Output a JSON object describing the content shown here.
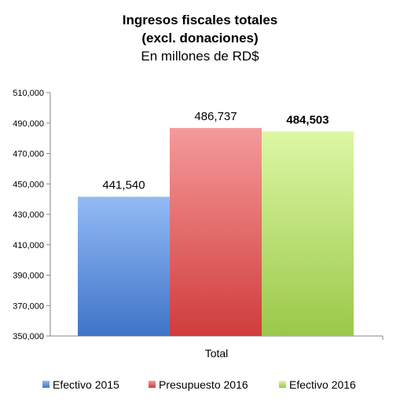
{
  "chart_data": {
    "type": "bar",
    "title": [
      "Ingresos fiscales totales",
      "(excl. donaciones)"
    ],
    "subtitle": "En millones de RD$",
    "categories": [
      "Total"
    ],
    "series": [
      {
        "name": "Efectivo 2015",
        "values": [
          441540
        ],
        "label": "441,540",
        "color": "#4a7fd3",
        "label_bold": false
      },
      {
        "name": "Presupuesto 2016",
        "values": [
          486737
        ],
        "label": "486,737",
        "color": "#e05a5a",
        "label_bold": false
      },
      {
        "name": "Efectivo 2016",
        "values": [
          484503
        ],
        "label": "484,503",
        "color": "#b6dd5b",
        "label_bold": true
      }
    ],
    "ylim": [
      350000,
      510000
    ],
    "yticks": [
      "350,000",
      "370,000",
      "390,000",
      "410,000",
      "430,000",
      "450,000",
      "470,000",
      "490,000",
      "510,000"
    ],
    "ytick_values": [
      350000,
      370000,
      390000,
      410000,
      430000,
      450000,
      470000,
      490000,
      510000
    ],
    "legend_position": "bottom",
    "grid": false
  }
}
